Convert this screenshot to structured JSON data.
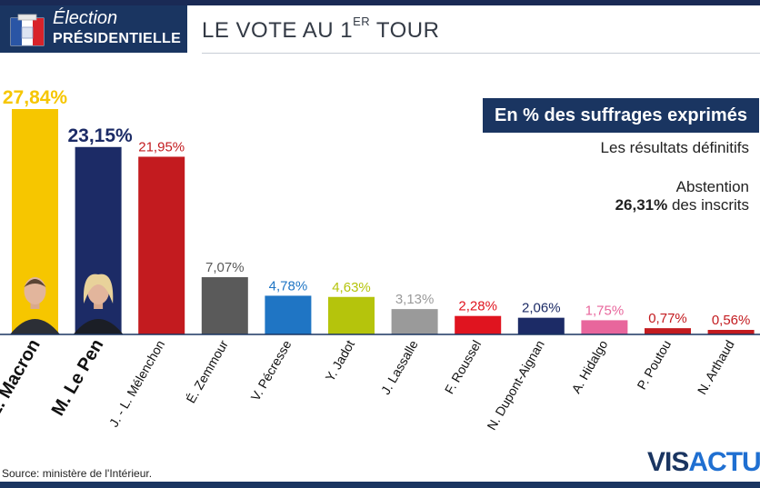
{
  "header": {
    "badge_line1": "Élection",
    "badge_line2": "PRÉSIDENTIELLE",
    "title_main": "LE VOTE AU 1",
    "title_sup": "ER",
    "title_end": " TOUR"
  },
  "info": {
    "box": "En % des suffrages exprimés",
    "subtitle": "Les résultats définitifs",
    "abstention_label": "Abstention",
    "abstention_value": "26,31%",
    "abstention_suffix": " des inscrits"
  },
  "footer": {
    "source": "Source: ministère de l'Intérieur.",
    "logo_a": "VIS",
    "logo_b": "ACTU"
  },
  "chart_data": {
    "type": "bar",
    "categories": [
      "E. Macron",
      "M. Le Pen",
      "J. - L. Mélenchon",
      "É. Zemmour",
      "V. Pécresse",
      "Y. Jadot",
      "J. Lassalle",
      "F. Roussel",
      "N. Dupont-Aignan",
      "A. Hidalgo",
      "P. Poutou",
      "N. Arthaud"
    ],
    "values": [
      27.84,
      23.15,
      21.95,
      7.07,
      4.78,
      4.63,
      3.13,
      2.28,
      2.06,
      1.75,
      0.77,
      0.56
    ],
    "value_labels": [
      "27,84%",
      "23,15%",
      "21,95%",
      "7,07%",
      "4,78%",
      "4,63%",
      "3,13%",
      "2,28%",
      "2,06%",
      "1,75%",
      "0,77%",
      "0,56%"
    ],
    "colors": [
      "#f6c600",
      "#1c2b66",
      "#c31b1f",
      "#5a5a5a",
      "#1f75c4",
      "#b5c40c",
      "#9a9a9a",
      "#e0141f",
      "#1c2b66",
      "#e8669c",
      "#c31b1f",
      "#c31b1f"
    ],
    "highlight": [
      true,
      true,
      false,
      false,
      false,
      false,
      false,
      false,
      false,
      false,
      false,
      false
    ],
    "ylim": [
      0,
      27.84
    ]
  }
}
